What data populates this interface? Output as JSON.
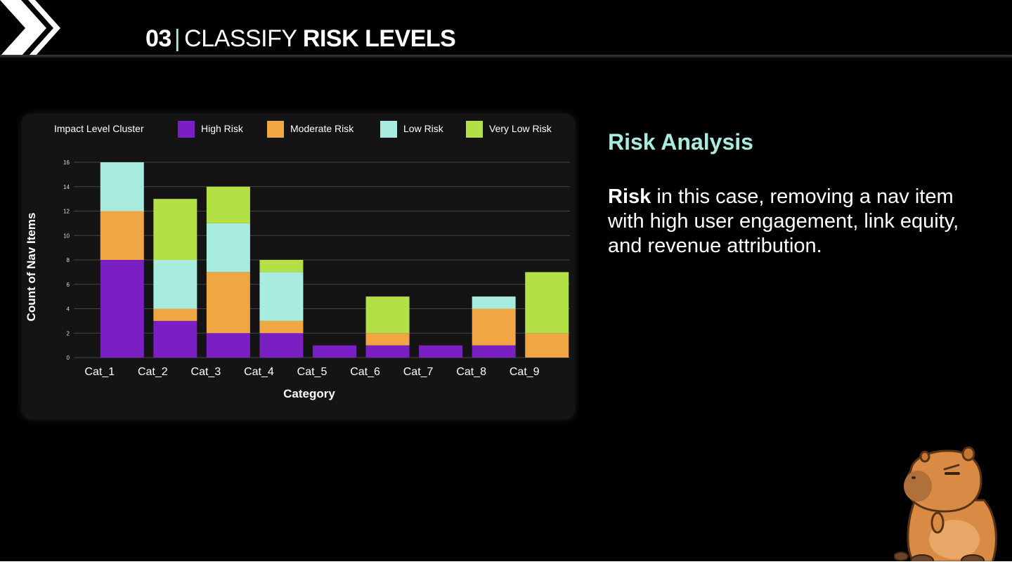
{
  "header": {
    "number": "03",
    "separator": "|",
    "title_light": "CLASSIFY",
    "title_bold": "RISK LEVELS"
  },
  "side_panel": {
    "heading": "Risk Analysis",
    "body_strong": "Risk",
    "body_text": " in this case, removing a nav item with high user engagement, link equity, and revenue attribution."
  },
  "chart_data": {
    "type": "bar",
    "stacked": true,
    "legend_title": "Impact Level Cluster",
    "legend_position": "top",
    "grid": true,
    "xlabel": "Category",
    "ylabel": "Count of Nav Items",
    "ylim": [
      0,
      16
    ],
    "yticks": [
      "0",
      "2",
      "4",
      "6",
      "8",
      "10",
      "12",
      "14",
      "16"
    ],
    "categories": [
      "Cat_1",
      "Cat_2",
      "Cat_3",
      "Cat_4",
      "Cat_5",
      "Cat_6",
      "Cat_7",
      "Cat_8",
      "Cat_9"
    ],
    "series": [
      {
        "name": "High  Risk",
        "color": "#7a1fc4",
        "values": [
          8,
          3,
          2,
          2,
          1,
          1,
          1,
          1,
          0
        ]
      },
      {
        "name": "Moderate Risk",
        "color": "#f0a642",
        "values": [
          4,
          1,
          5,
          1,
          0,
          1,
          0,
          3,
          2
        ]
      },
      {
        "name": "Low Risk",
        "color": "#a8ece0",
        "values": [
          4,
          4,
          4,
          4,
          0,
          0,
          0,
          1,
          0
        ]
      },
      {
        "name": "Very Low Risk",
        "color": "#b3e047",
        "values": [
          0,
          5,
          3,
          1,
          0,
          3,
          0,
          0,
          5
        ]
      }
    ]
  },
  "colors": {
    "accent": "#a8ece0",
    "background": "#000000",
    "card": "#141414"
  },
  "icons": {
    "logo": "double-chevron-right-icon",
    "mascot": "capybara-mascot-icon"
  }
}
